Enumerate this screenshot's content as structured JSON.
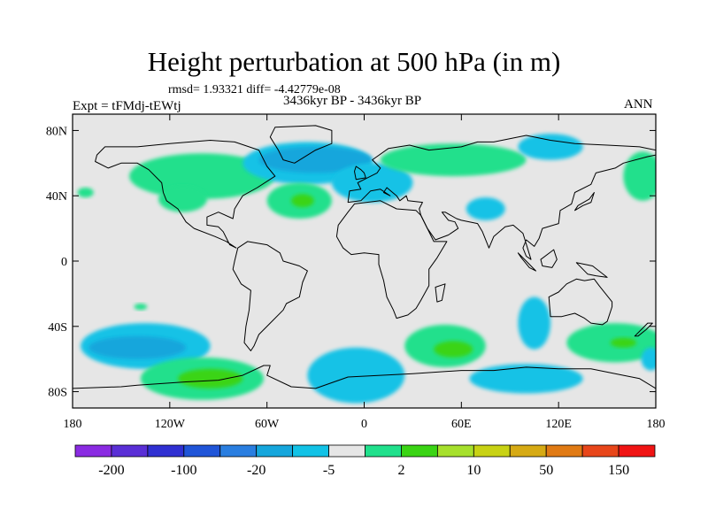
{
  "title": "Height perturbation at 500 hPa (in m)",
  "stats": "rmsd= 1.93321 diff= -4.42779e-08",
  "left_label": "Expt = tFMdj-tEWtj",
  "center_label": "3436kyr BP - 3436kyr BP",
  "right_label": "ANN",
  "map": {
    "projection": "cylindrical equidistant",
    "lon_range": [
      -180,
      180
    ],
    "lat_range": [
      -90,
      90
    ],
    "x_ticks": [
      {
        "lon": -180,
        "label": "180"
      },
      {
        "lon": -120,
        "label": "120W"
      },
      {
        "lon": -60,
        "label": "60W"
      },
      {
        "lon": 0,
        "label": "0"
      },
      {
        "lon": 60,
        "label": "60E"
      },
      {
        "lon": 120,
        "label": "120E"
      },
      {
        "lon": 180,
        "label": "180"
      }
    ],
    "y_ticks": [
      {
        "lat": 80,
        "label": "80N"
      },
      {
        "lat": 40,
        "label": "40N"
      },
      {
        "lat": 0,
        "label": "0"
      },
      {
        "lat": -40,
        "label": "40S"
      },
      {
        "lat": -80,
        "label": "80S"
      }
    ]
  },
  "colorbar": {
    "colors": [
      "#8a2be2",
      "#5a2fd6",
      "#3030d2",
      "#2055d8",
      "#2a7ee0",
      "#15a6dc",
      "#12c2e6",
      "#e6e6e6",
      "#20e08c",
      "#3ad414",
      "#a6e02c",
      "#c8d214",
      "#d6aa14",
      "#e07a14",
      "#e8461a",
      "#f01414"
    ],
    "labels": [
      {
        "after_index": 0,
        "text": "-200"
      },
      {
        "after_index": 2,
        "text": "-100"
      },
      {
        "after_index": 4,
        "text": "-20"
      },
      {
        "after_index": 6,
        "text": "-5"
      },
      {
        "after_index": 8,
        "text": "2"
      },
      {
        "after_index": 10,
        "text": "10"
      },
      {
        "after_index": 12,
        "text": "50"
      },
      {
        "after_index": 14,
        "text": "150"
      }
    ]
  },
  "regions": [
    {
      "name": "na-pacific-positive",
      "color": "#20e08c",
      "lon": -100,
      "lat": 52,
      "rlon": 45,
      "rlat": 14
    },
    {
      "name": "na-pacific-positive-west",
      "color": "#20e08c",
      "lon": -172,
      "lat": 42,
      "rlon": 5,
      "rlat": 3
    },
    {
      "name": "na-west-positive",
      "color": "#20e08c",
      "lon": -112,
      "lat": 38,
      "rlon": 15,
      "rlat": 8
    },
    {
      "name": "north-atlantic-negative",
      "color": "#12c2e6",
      "lon": -35,
      "lat": 60,
      "rlon": 40,
      "rlat": 13
    },
    {
      "name": "north-atlantic-negative-core",
      "color": "#15a6dc",
      "lon": -30,
      "lat": 62,
      "rlon": 35,
      "rlat": 8
    },
    {
      "name": "europe-negative",
      "color": "#12c2e6",
      "lon": 5,
      "lat": 48,
      "rlon": 25,
      "rlat": 12
    },
    {
      "name": "atlantic-positive",
      "color": "#20e08c",
      "lon": -40,
      "lat": 37,
      "rlon": 20,
      "rlat": 11
    },
    {
      "name": "atlantic-positive-core",
      "color": "#3ad414",
      "lon": -38,
      "lat": 37,
      "rlon": 7,
      "rlat": 4
    },
    {
      "name": "caspian-negative",
      "color": "#12c2e6",
      "lon": 75,
      "lat": 32,
      "rlon": 12,
      "rlat": 7
    },
    {
      "name": "siberia-positive",
      "color": "#20e08c",
      "lon": 55,
      "lat": 62,
      "rlon": 45,
      "rlat": 10
    },
    {
      "name": "arctic-negative",
      "color": "#12c2e6",
      "lon": 115,
      "lat": 70,
      "rlon": 20,
      "rlat": 8
    },
    {
      "name": "dateline-positive",
      "color": "#20e08c",
      "lon": 172,
      "lat": 52,
      "rlon": 12,
      "rlat": 15
    },
    {
      "name": "indian-negative",
      "color": "#12c2e6",
      "lon": 105,
      "lat": -38,
      "rlon": 10,
      "rlat": 16
    },
    {
      "name": "south-pacific-negative",
      "color": "#12c2e6",
      "lon": -135,
      "lat": -52,
      "rlon": 40,
      "rlat": 14
    },
    {
      "name": "south-pacific-negative-core",
      "color": "#15a6dc",
      "lon": -140,
      "lat": -53,
      "rlon": 30,
      "rlat": 7
    },
    {
      "name": "south-pacific-positive",
      "color": "#20e08c",
      "lon": -100,
      "lat": -72,
      "rlon": 38,
      "rlat": 13
    },
    {
      "name": "south-pacific-positive-core",
      "color": "#3ad414",
      "lon": -95,
      "lat": -72,
      "rlon": 20,
      "rlat": 6
    },
    {
      "name": "south-atlantic-negative",
      "color": "#12c2e6",
      "lon": -5,
      "lat": -70,
      "rlon": 30,
      "rlat": 17
    },
    {
      "name": "south-indian-positive",
      "color": "#20e08c",
      "lon": 50,
      "lat": -52,
      "rlon": 25,
      "rlat": 13
    },
    {
      "name": "south-indian-positive-core",
      "color": "#3ad414",
      "lon": 55,
      "lat": -54,
      "rlon": 12,
      "rlat": 5
    },
    {
      "name": "southern-ocean-negative",
      "color": "#12c2e6",
      "lon": 100,
      "lat": -72,
      "rlon": 35,
      "rlat": 9
    },
    {
      "name": "australia-south-positive",
      "color": "#20e08c",
      "lon": 155,
      "lat": -50,
      "rlon": 30,
      "rlat": 12
    },
    {
      "name": "australia-south-positive-core",
      "color": "#3ad414",
      "lon": 160,
      "lat": -50,
      "rlon": 8,
      "rlat": 3
    },
    {
      "name": "pacific-east-negative",
      "color": "#12c2e6",
      "lon": 177,
      "lat": -60,
      "rlon": 6,
      "rlat": 7
    },
    {
      "name": "tropical-small-positive",
      "color": "#20e08c",
      "lon": -138,
      "lat": -28,
      "rlon": 4,
      "rlat": 2
    }
  ],
  "continents": [
    {
      "name": "north-america",
      "points": [
        [
          -165,
          65
        ],
        [
          -160,
          70
        ],
        [
          -140,
          70
        ],
        [
          -120,
          72
        ],
        [
          -95,
          74
        ],
        [
          -80,
          73
        ],
        [
          -65,
          68
        ],
        [
          -60,
          58
        ],
        [
          -55,
          52
        ],
        [
          -66,
          45
        ],
        [
          -75,
          40
        ],
        [
          -80,
          32
        ],
        [
          -81,
          26
        ],
        [
          -90,
          30
        ],
        [
          -97,
          27
        ],
        [
          -97,
          22
        ],
        [
          -90,
          21
        ],
        [
          -87,
          18
        ],
        [
          -83,
          10
        ],
        [
          -79,
          8
        ],
        [
          -85,
          12
        ],
        [
          -92,
          15
        ],
        [
          -105,
          20
        ],
        [
          -110,
          24
        ],
        [
          -115,
          32
        ],
        [
          -122,
          37
        ],
        [
          -124,
          42
        ],
        [
          -125,
          48
        ],
        [
          -133,
          56
        ],
        [
          -140,
          60
        ],
        [
          -150,
          60
        ],
        [
          -158,
          57
        ],
        [
          -166,
          61
        ]
      ]
    },
    {
      "name": "greenland",
      "points": [
        [
          -55,
          82
        ],
        [
          -30,
          83
        ],
        [
          -20,
          80
        ],
        [
          -20,
          72
        ],
        [
          -30,
          68
        ],
        [
          -43,
          60
        ],
        [
          -50,
          62
        ],
        [
          -53,
          68
        ],
        [
          -58,
          76
        ]
      ]
    },
    {
      "name": "south-america",
      "points": [
        [
          -78,
          8
        ],
        [
          -72,
          12
        ],
        [
          -60,
          10
        ],
        [
          -52,
          5
        ],
        [
          -50,
          0
        ],
        [
          -40,
          -3
        ],
        [
          -35,
          -6
        ],
        [
          -38,
          -13
        ],
        [
          -40,
          -22
        ],
        [
          -48,
          -26
        ],
        [
          -50,
          -30
        ],
        [
          -58,
          -38
        ],
        [
          -65,
          -45
        ],
        [
          -68,
          -52
        ],
        [
          -70,
          -55
        ],
        [
          -74,
          -50
        ],
        [
          -73,
          -40
        ],
        [
          -71,
          -30
        ],
        [
          -70,
          -18
        ],
        [
          -76,
          -14
        ],
        [
          -81,
          -5
        ],
        [
          -80,
          0
        ]
      ]
    },
    {
      "name": "africa",
      "points": [
        [
          -17,
          15
        ],
        [
          -16,
          22
        ],
        [
          -10,
          30
        ],
        [
          -6,
          35
        ],
        [
          10,
          37
        ],
        [
          20,
          32
        ],
        [
          32,
          31
        ],
        [
          35,
          28
        ],
        [
          43,
          12
        ],
        [
          51,
          12
        ],
        [
          45,
          2
        ],
        [
          40,
          -5
        ],
        [
          40,
          -15
        ],
        [
          35,
          -24
        ],
        [
          32,
          -29
        ],
        [
          27,
          -33
        ],
        [
          20,
          -35
        ],
        [
          18,
          -30
        ],
        [
          14,
          -22
        ],
        [
          12,
          -12
        ],
        [
          9,
          -2
        ],
        [
          9,
          4
        ],
        [
          0,
          5
        ],
        [
          -8,
          4
        ],
        [
          -13,
          8
        ]
      ]
    },
    {
      "name": "eurasia",
      "points": [
        [
          -10,
          36
        ],
        [
          -9,
          43
        ],
        [
          -2,
          44
        ],
        [
          -4,
          48
        ],
        [
          2,
          51
        ],
        [
          8,
          54
        ],
        [
          10,
          57
        ],
        [
          5,
          62
        ],
        [
          15,
          69
        ],
        [
          28,
          71
        ],
        [
          40,
          68
        ],
        [
          60,
          70
        ],
        [
          70,
          73
        ],
        [
          80,
          73
        ],
        [
          100,
          77
        ],
        [
          115,
          74
        ],
        [
          130,
          72
        ],
        [
          150,
          71
        ],
        [
          170,
          70
        ],
        [
          180,
          68
        ],
        [
          180,
          65
        ],
        [
          175,
          64
        ],
        [
          160,
          60
        ],
        [
          155,
          57
        ],
        [
          143,
          54
        ],
        [
          140,
          47
        ],
        [
          130,
          42
        ],
        [
          128,
          35
        ],
        [
          121,
          31
        ],
        [
          120,
          23
        ],
        [
          110,
          20
        ],
        [
          108,
          14
        ],
        [
          105,
          9
        ],
        [
          100,
          13
        ],
        [
          98,
          8
        ],
        [
          100,
          3
        ],
        [
          103,
          1
        ],
        [
          98,
          17
        ],
        [
          92,
          22
        ],
        [
          87,
          21
        ],
        [
          80,
          15
        ],
        [
          77,
          8
        ],
        [
          73,
          18
        ],
        [
          70,
          23
        ],
        [
          60,
          25
        ],
        [
          57,
          26
        ],
        [
          50,
          30
        ],
        [
          48,
          30
        ],
        [
          52,
          25
        ],
        [
          56,
          24
        ],
        [
          58,
          20
        ],
        [
          52,
          16
        ],
        [
          44,
          13
        ],
        [
          39,
          20
        ],
        [
          35,
          28
        ],
        [
          34,
          32
        ],
        [
          36,
          36
        ],
        [
          27,
          37
        ],
        [
          26,
          40
        ],
        [
          22,
          37
        ],
        [
          20,
          40
        ],
        [
          14,
          45
        ],
        [
          12,
          42
        ],
        [
          16,
          40
        ],
        [
          10,
          44
        ],
        [
          4,
          43
        ],
        [
          -2,
          37
        ]
      ]
    },
    {
      "name": "australia",
      "points": [
        [
          114,
          -22
        ],
        [
          115,
          -34
        ],
        [
          122,
          -34
        ],
        [
          130,
          -32
        ],
        [
          136,
          -35
        ],
        [
          140,
          -38
        ],
        [
          147,
          -39
        ],
        [
          150,
          -37
        ],
        [
          153,
          -28
        ],
        [
          153,
          -25
        ],
        [
          145,
          -15
        ],
        [
          142,
          -11
        ],
        [
          136,
          -12
        ],
        [
          131,
          -11
        ],
        [
          125,
          -14
        ],
        [
          120,
          -19
        ]
      ]
    },
    {
      "name": "antarctica",
      "points": [
        [
          -180,
          -78
        ],
        [
          -150,
          -77
        ],
        [
          -140,
          -76
        ],
        [
          -110,
          -74
        ],
        [
          -90,
          -73
        ],
        [
          -75,
          -70
        ],
        [
          -62,
          -64
        ],
        [
          -58,
          -64
        ],
        [
          -60,
          -70
        ],
        [
          -45,
          -77
        ],
        [
          -30,
          -78
        ],
        [
          -10,
          -71
        ],
        [
          10,
          -70
        ],
        [
          30,
          -69
        ],
        [
          60,
          -67
        ],
        [
          80,
          -67
        ],
        [
          100,
          -65
        ],
        [
          120,
          -66
        ],
        [
          140,
          -66
        ],
        [
          160,
          -70
        ],
        [
          170,
          -72
        ],
        [
          180,
          -78
        ],
        [
          180,
          -90
        ],
        [
          -180,
          -90
        ]
      ]
    },
    {
      "name": "uk",
      "points": [
        [
          -5,
          50
        ],
        [
          1,
          51
        ],
        [
          0,
          54
        ],
        [
          -2,
          56
        ],
        [
          -5,
          58
        ],
        [
          -6,
          55
        ]
      ]
    },
    {
      "name": "madagascar",
      "points": [
        [
          44,
          -16
        ],
        [
          50,
          -14
        ],
        [
          48,
          -24
        ],
        [
          45,
          -25
        ]
      ]
    },
    {
      "name": "japan",
      "points": [
        [
          130,
          31
        ],
        [
          135,
          34
        ],
        [
          140,
          36
        ],
        [
          142,
          42
        ],
        [
          139,
          38
        ],
        [
          132,
          34
        ]
      ]
    },
    {
      "name": "new-zealand",
      "points": [
        [
          167,
          -46
        ],
        [
          172,
          -41
        ],
        [
          175,
          -38
        ],
        [
          178,
          -38
        ],
        [
          174,
          -42
        ],
        [
          169,
          -46
        ]
      ]
    },
    {
      "name": "borneo",
      "points": [
        [
          109,
          1
        ],
        [
          117,
          7
        ],
        [
          119,
          1
        ],
        [
          116,
          -4
        ],
        [
          110,
          -3
        ]
      ]
    },
    {
      "name": "sumatra",
      "points": [
        [
          95,
          5
        ],
        [
          100,
          0
        ],
        [
          106,
          -6
        ],
        [
          102,
          -4
        ],
        [
          97,
          2
        ]
      ]
    },
    {
      "name": "new-guinea",
      "points": [
        [
          131,
          -1
        ],
        [
          141,
          -3
        ],
        [
          150,
          -10
        ],
        [
          143,
          -9
        ],
        [
          138,
          -8
        ]
      ]
    }
  ]
}
